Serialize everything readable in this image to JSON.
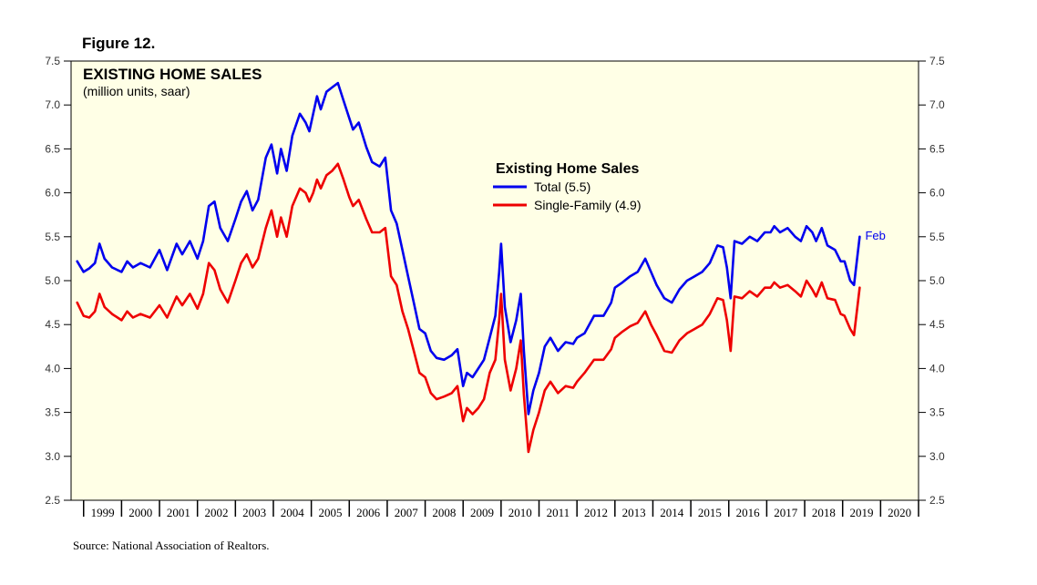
{
  "figure_label": "Figure 12.",
  "source": "Source: National Association of Realtors.",
  "chart_data": {
    "type": "line",
    "title": "EXISTING HOME SALES",
    "subtitle": "(million units, saar)",
    "legend_title": "Existing Home Sales",
    "annotation": "Feb",
    "xlim": [
      1998.67,
      2021.0
    ],
    "ylim": [
      2.5,
      7.5
    ],
    "yticks": [
      "2.5",
      "3.0",
      "3.5",
      "4.0",
      "4.5",
      "5.0",
      "5.5",
      "6.0",
      "6.5",
      "7.0",
      "7.5"
    ],
    "year_labels": [
      "1999",
      "2000",
      "2001",
      "2002",
      "2003",
      "2004",
      "2005",
      "2006",
      "2007",
      "2008",
      "2009",
      "2010",
      "2011",
      "2012",
      "2013",
      "2014",
      "2015",
      "2016",
      "2017",
      "2018",
      "2019",
      "2020"
    ],
    "grid": false,
    "legend_position": "top-center",
    "colors": {
      "plot_bg": "#ffffe6",
      "total": "#0000ee",
      "single": "#ee0000",
      "annotation": "#0000ee"
    },
    "series": [
      {
        "name": "Total (5.5)",
        "points": [
          [
            1998.83,
            5.22
          ],
          [
            1999.0,
            5.1
          ],
          [
            1999.15,
            5.14
          ],
          [
            1999.3,
            5.2
          ],
          [
            1999.42,
            5.42
          ],
          [
            1999.55,
            5.25
          ],
          [
            1999.75,
            5.15
          ],
          [
            2000.0,
            5.1
          ],
          [
            2000.15,
            5.22
          ],
          [
            2000.3,
            5.15
          ],
          [
            2000.5,
            5.2
          ],
          [
            2000.75,
            5.15
          ],
          [
            2001.0,
            5.35
          ],
          [
            2001.2,
            5.12
          ],
          [
            2001.45,
            5.42
          ],
          [
            2001.6,
            5.3
          ],
          [
            2001.8,
            5.45
          ],
          [
            2002.0,
            5.25
          ],
          [
            2002.15,
            5.45
          ],
          [
            2002.3,
            5.85
          ],
          [
            2002.45,
            5.9
          ],
          [
            2002.6,
            5.6
          ],
          [
            2002.8,
            5.45
          ],
          [
            2003.0,
            5.7
          ],
          [
            2003.15,
            5.9
          ],
          [
            2003.3,
            6.02
          ],
          [
            2003.45,
            5.8
          ],
          [
            2003.6,
            5.92
          ],
          [
            2003.8,
            6.4
          ],
          [
            2003.95,
            6.55
          ],
          [
            2004.1,
            6.22
          ],
          [
            2004.2,
            6.5
          ],
          [
            2004.35,
            6.25
          ],
          [
            2004.5,
            6.65
          ],
          [
            2004.7,
            6.9
          ],
          [
            2004.85,
            6.8
          ],
          [
            2004.95,
            6.7
          ],
          [
            2005.05,
            6.9
          ],
          [
            2005.15,
            7.1
          ],
          [
            2005.25,
            6.95
          ],
          [
            2005.4,
            7.15
          ],
          [
            2005.55,
            7.2
          ],
          [
            2005.7,
            7.25
          ],
          [
            2005.85,
            7.05
          ],
          [
            2006.0,
            6.85
          ],
          [
            2006.1,
            6.72
          ],
          [
            2006.25,
            6.8
          ],
          [
            2006.45,
            6.52
          ],
          [
            2006.6,
            6.35
          ],
          [
            2006.8,
            6.3
          ],
          [
            2006.95,
            6.4
          ],
          [
            2007.1,
            5.8
          ],
          [
            2007.25,
            5.65
          ],
          [
            2007.4,
            5.35
          ],
          [
            2007.55,
            5.05
          ],
          [
            2007.7,
            4.75
          ],
          [
            2007.85,
            4.45
          ],
          [
            2008.0,
            4.4
          ],
          [
            2008.15,
            4.2
          ],
          [
            2008.3,
            4.12
          ],
          [
            2008.5,
            4.1
          ],
          [
            2008.7,
            4.15
          ],
          [
            2008.85,
            4.22
          ],
          [
            2009.0,
            3.8
          ],
          [
            2009.1,
            3.95
          ],
          [
            2009.25,
            3.9
          ],
          [
            2009.4,
            4.0
          ],
          [
            2009.55,
            4.1
          ],
          [
            2009.7,
            4.35
          ],
          [
            2009.85,
            4.6
          ],
          [
            2009.95,
            5.1
          ],
          [
            2010.0,
            5.42
          ],
          [
            2010.1,
            4.7
          ],
          [
            2010.25,
            4.3
          ],
          [
            2010.4,
            4.55
          ],
          [
            2010.52,
            4.85
          ],
          [
            2010.6,
            4.2
          ],
          [
            2010.72,
            3.48
          ],
          [
            2010.85,
            3.75
          ],
          [
            2011.0,
            3.95
          ],
          [
            2011.15,
            4.25
          ],
          [
            2011.3,
            4.35
          ],
          [
            2011.5,
            4.2
          ],
          [
            2011.7,
            4.3
          ],
          [
            2011.9,
            4.28
          ],
          [
            2012.0,
            4.35
          ],
          [
            2012.2,
            4.4
          ],
          [
            2012.45,
            4.6
          ],
          [
            2012.7,
            4.6
          ],
          [
            2012.9,
            4.75
          ],
          [
            2013.0,
            4.92
          ],
          [
            2013.2,
            4.98
          ],
          [
            2013.4,
            5.05
          ],
          [
            2013.6,
            5.1
          ],
          [
            2013.8,
            5.25
          ],
          [
            2013.95,
            5.1
          ],
          [
            2014.1,
            4.95
          ],
          [
            2014.3,
            4.8
          ],
          [
            2014.5,
            4.75
          ],
          [
            2014.7,
            4.9
          ],
          [
            2014.9,
            5.0
          ],
          [
            2015.1,
            5.05
          ],
          [
            2015.3,
            5.1
          ],
          [
            2015.5,
            5.2
          ],
          [
            2015.7,
            5.4
          ],
          [
            2015.85,
            5.38
          ],
          [
            2015.95,
            5.15
          ],
          [
            2016.05,
            4.8
          ],
          [
            2016.15,
            5.45
          ],
          [
            2016.35,
            5.42
          ],
          [
            2016.55,
            5.5
          ],
          [
            2016.75,
            5.45
          ],
          [
            2016.95,
            5.55
          ],
          [
            2017.1,
            5.55
          ],
          [
            2017.2,
            5.62
          ],
          [
            2017.35,
            5.55
          ],
          [
            2017.55,
            5.6
          ],
          [
            2017.75,
            5.5
          ],
          [
            2017.9,
            5.45
          ],
          [
            2018.05,
            5.62
          ],
          [
            2018.2,
            5.55
          ],
          [
            2018.3,
            5.45
          ],
          [
            2018.45,
            5.6
          ],
          [
            2018.6,
            5.4
          ],
          [
            2018.8,
            5.35
          ],
          [
            2018.95,
            5.22
          ],
          [
            2019.05,
            5.22
          ],
          [
            2019.2,
            5.0
          ],
          [
            2019.3,
            4.95
          ],
          [
            2019.45,
            5.5
          ]
        ]
      },
      {
        "name": "Single-Family (4.9)",
        "points": [
          [
            1998.83,
            4.75
          ],
          [
            1999.0,
            4.6
          ],
          [
            1999.15,
            4.58
          ],
          [
            1999.3,
            4.65
          ],
          [
            1999.42,
            4.85
          ],
          [
            1999.55,
            4.7
          ],
          [
            1999.75,
            4.62
          ],
          [
            2000.0,
            4.55
          ],
          [
            2000.15,
            4.65
          ],
          [
            2000.3,
            4.58
          ],
          [
            2000.5,
            4.62
          ],
          [
            2000.75,
            4.58
          ],
          [
            2001.0,
            4.72
          ],
          [
            2001.2,
            4.58
          ],
          [
            2001.45,
            4.82
          ],
          [
            2001.6,
            4.72
          ],
          [
            2001.8,
            4.85
          ],
          [
            2002.0,
            4.68
          ],
          [
            2002.15,
            4.85
          ],
          [
            2002.3,
            5.2
          ],
          [
            2002.45,
            5.12
          ],
          [
            2002.6,
            4.9
          ],
          [
            2002.8,
            4.75
          ],
          [
            2003.0,
            5.0
          ],
          [
            2003.15,
            5.2
          ],
          [
            2003.3,
            5.3
          ],
          [
            2003.45,
            5.15
          ],
          [
            2003.6,
            5.25
          ],
          [
            2003.8,
            5.6
          ],
          [
            2003.95,
            5.8
          ],
          [
            2004.1,
            5.5
          ],
          [
            2004.2,
            5.72
          ],
          [
            2004.35,
            5.5
          ],
          [
            2004.5,
            5.85
          ],
          [
            2004.7,
            6.05
          ],
          [
            2004.85,
            6.0
          ],
          [
            2004.95,
            5.9
          ],
          [
            2005.05,
            6.0
          ],
          [
            2005.15,
            6.15
          ],
          [
            2005.25,
            6.05
          ],
          [
            2005.4,
            6.2
          ],
          [
            2005.55,
            6.25
          ],
          [
            2005.7,
            6.33
          ],
          [
            2005.85,
            6.15
          ],
          [
            2006.0,
            5.95
          ],
          [
            2006.1,
            5.85
          ],
          [
            2006.25,
            5.92
          ],
          [
            2006.45,
            5.7
          ],
          [
            2006.6,
            5.55
          ],
          [
            2006.8,
            5.55
          ],
          [
            2006.95,
            5.6
          ],
          [
            2007.1,
            5.05
          ],
          [
            2007.25,
            4.95
          ],
          [
            2007.4,
            4.65
          ],
          [
            2007.55,
            4.45
          ],
          [
            2007.7,
            4.2
          ],
          [
            2007.85,
            3.95
          ],
          [
            2008.0,
            3.9
          ],
          [
            2008.15,
            3.72
          ],
          [
            2008.3,
            3.65
          ],
          [
            2008.5,
            3.68
          ],
          [
            2008.7,
            3.72
          ],
          [
            2008.85,
            3.8
          ],
          [
            2009.0,
            3.4
          ],
          [
            2009.1,
            3.55
          ],
          [
            2009.25,
            3.48
          ],
          [
            2009.4,
            3.55
          ],
          [
            2009.55,
            3.65
          ],
          [
            2009.7,
            3.95
          ],
          [
            2009.85,
            4.1
          ],
          [
            2009.95,
            4.55
          ],
          [
            2010.0,
            4.85
          ],
          [
            2010.1,
            4.1
          ],
          [
            2010.25,
            3.75
          ],
          [
            2010.4,
            4.0
          ],
          [
            2010.52,
            4.32
          ],
          [
            2010.6,
            3.7
          ],
          [
            2010.72,
            3.05
          ],
          [
            2010.85,
            3.3
          ],
          [
            2011.0,
            3.5
          ],
          [
            2011.15,
            3.75
          ],
          [
            2011.3,
            3.85
          ],
          [
            2011.5,
            3.72
          ],
          [
            2011.7,
            3.8
          ],
          [
            2011.9,
            3.78
          ],
          [
            2012.0,
            3.85
          ],
          [
            2012.2,
            3.95
          ],
          [
            2012.45,
            4.1
          ],
          [
            2012.7,
            4.1
          ],
          [
            2012.9,
            4.22
          ],
          [
            2013.0,
            4.35
          ],
          [
            2013.2,
            4.42
          ],
          [
            2013.4,
            4.48
          ],
          [
            2013.6,
            4.52
          ],
          [
            2013.8,
            4.65
          ],
          [
            2013.95,
            4.5
          ],
          [
            2014.1,
            4.38
          ],
          [
            2014.3,
            4.2
          ],
          [
            2014.5,
            4.18
          ],
          [
            2014.7,
            4.32
          ],
          [
            2014.9,
            4.4
          ],
          [
            2015.1,
            4.45
          ],
          [
            2015.3,
            4.5
          ],
          [
            2015.5,
            4.62
          ],
          [
            2015.7,
            4.8
          ],
          [
            2015.85,
            4.78
          ],
          [
            2015.95,
            4.55
          ],
          [
            2016.05,
            4.2
          ],
          [
            2016.15,
            4.82
          ],
          [
            2016.35,
            4.8
          ],
          [
            2016.55,
            4.88
          ],
          [
            2016.75,
            4.82
          ],
          [
            2016.95,
            4.92
          ],
          [
            2017.1,
            4.92
          ],
          [
            2017.2,
            4.98
          ],
          [
            2017.35,
            4.92
          ],
          [
            2017.55,
            4.95
          ],
          [
            2017.75,
            4.88
          ],
          [
            2017.9,
            4.82
          ],
          [
            2018.05,
            5.0
          ],
          [
            2018.2,
            4.9
          ],
          [
            2018.3,
            4.82
          ],
          [
            2018.45,
            4.98
          ],
          [
            2018.6,
            4.8
          ],
          [
            2018.8,
            4.78
          ],
          [
            2018.95,
            4.62
          ],
          [
            2019.05,
            4.6
          ],
          [
            2019.2,
            4.45
          ],
          [
            2019.3,
            4.38
          ],
          [
            2019.45,
            4.92
          ]
        ]
      }
    ]
  }
}
